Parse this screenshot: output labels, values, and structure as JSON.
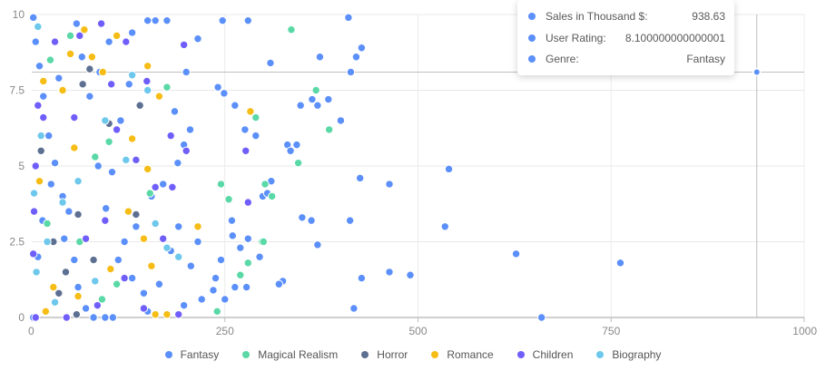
{
  "chart_data": {
    "type": "scatter",
    "title": "",
    "xlabel": "Sales in Thousand $",
    "ylabel": "User Rating",
    "xlim": [
      0,
      1000
    ],
    "ylim": [
      0,
      10
    ],
    "x_ticks": [
      "0",
      "250",
      "500",
      "750",
      "1000"
    ],
    "y_ticks": [
      "0",
      "2.5",
      "5",
      "7.5",
      "10"
    ],
    "grid": true,
    "legend_position": "bottom",
    "series": [
      {
        "name": "Fantasy",
        "color": "#5b8ff9",
        "points": [
          [
            938.63,
            8.1
          ],
          [
            660,
            0
          ],
          [
            762,
            1.8
          ],
          [
            627,
            2.1
          ],
          [
            535,
            3.0
          ],
          [
            540,
            4.9
          ],
          [
            490,
            1.4
          ],
          [
            463,
            1.5
          ],
          [
            427,
            1.3
          ],
          [
            417,
            0.3
          ],
          [
            412,
            3.2
          ],
          [
            463,
            4.4
          ],
          [
            425,
            4.6
          ],
          [
            370,
            2.4
          ],
          [
            362,
            3.2
          ],
          [
            350,
            3.3
          ],
          [
            325,
            1.2
          ],
          [
            320,
            1.1
          ],
          [
            299,
            4.0
          ],
          [
            305,
            4.1
          ],
          [
            310,
            4.5
          ],
          [
            295,
            2.0
          ],
          [
            280,
            2.6
          ],
          [
            270,
            2.3
          ],
          [
            260,
            2.7
          ],
          [
            263,
            1.0
          ],
          [
            238,
            1.3
          ],
          [
            235,
            0.9
          ],
          [
            220,
            0.6
          ],
          [
            290,
            6.0
          ],
          [
            331,
            5.7
          ],
          [
            335,
            5.5
          ],
          [
            343,
            5.7
          ],
          [
            348,
            7.0
          ],
          [
            370,
            7.0
          ],
          [
            363,
            7.2
          ],
          [
            400,
            6.5
          ],
          [
            420,
            8.6
          ],
          [
            427,
            8.9
          ],
          [
            413,
            8.1
          ],
          [
            410,
            9.9
          ],
          [
            373,
            8.6
          ],
          [
            384,
            7.2
          ],
          [
            247,
            9.8
          ],
          [
            249,
            7.4
          ],
          [
            241,
            7.6
          ],
          [
            276,
            6.2
          ],
          [
            263,
            7.0
          ],
          [
            280,
            9.8
          ],
          [
            309,
            8.4
          ],
          [
            259,
            3.2
          ],
          [
            245,
            1.9
          ],
          [
            278,
            1.0
          ],
          [
            250,
            0.6
          ],
          [
            175,
            9.8
          ],
          [
            160,
            9.8
          ],
          [
            150,
            9.8
          ],
          [
            215,
            9.2
          ],
          [
            200,
            8.1
          ],
          [
            185,
            6.8
          ],
          [
            205,
            6.2
          ],
          [
            197,
            5.7
          ],
          [
            189,
            5.1
          ],
          [
            170,
            4.4
          ],
          [
            155,
            4.0
          ],
          [
            135,
            3.0
          ],
          [
            120,
            2.5
          ],
          [
            112,
            1.9
          ],
          [
            130,
            1.3
          ],
          [
            145,
            0.8
          ],
          [
            150,
            0.2
          ],
          [
            105,
            0.0
          ],
          [
            95,
            0.0
          ],
          [
            80,
            0.0
          ],
          [
            70,
            0.3
          ],
          [
            60,
            1.0
          ],
          [
            55,
            1.9
          ],
          [
            48,
            3.5
          ],
          [
            40,
            4.0
          ],
          [
            30,
            5.1
          ],
          [
            22,
            6.0
          ],
          [
            15,
            7.3
          ],
          [
            10,
            8.3
          ],
          [
            5,
            9.1
          ],
          [
            2,
            9.9
          ],
          [
            2,
            0.0
          ],
          [
            8,
            2.0
          ],
          [
            14,
            3.2
          ],
          [
            25,
            4.4
          ],
          [
            42,
            2.6
          ],
          [
            86,
            5.0
          ],
          [
            96,
            3.6
          ],
          [
            104,
            4.8
          ],
          [
            115,
            6.5
          ],
          [
            126,
            7.7
          ],
          [
            130,
            9.4
          ],
          [
            100,
            9.1
          ],
          [
            88,
            8.1
          ],
          [
            75,
            7.3
          ],
          [
            65,
            8.6
          ],
          [
            58,
            9.7
          ],
          [
            35,
            7.9
          ],
          [
            180,
            2.2
          ],
          [
            190,
            3.0
          ],
          [
            206,
            1.7
          ],
          [
            215,
            2.5
          ],
          [
            197,
            0.4
          ],
          [
            165,
            1.1
          ]
        ]
      },
      {
        "name": "Magical Realism",
        "color": "#5ad8a6",
        "points": [
          [
            336,
            9.5
          ],
          [
            368,
            7.5
          ],
          [
            385,
            6.2
          ],
          [
            345,
            5.1
          ],
          [
            290,
            6.6
          ],
          [
            302,
            4.4
          ],
          [
            311,
            4.0
          ],
          [
            298,
            2.5
          ],
          [
            300,
            2.5
          ],
          [
            270,
            1.4
          ],
          [
            280,
            1.8
          ],
          [
            240,
            0.2
          ],
          [
            196,
            9.0
          ],
          [
            175,
            7.6
          ],
          [
            245,
            4.4
          ],
          [
            255,
            3.9
          ],
          [
            153,
            4.1
          ],
          [
            100,
            5.8
          ],
          [
            82,
            5.3
          ],
          [
            50,
            9.3
          ],
          [
            24,
            8.5
          ],
          [
            20,
            3.1
          ],
          [
            62,
            2.5
          ],
          [
            110,
            1.1
          ],
          [
            91,
            0.6
          ]
        ]
      },
      {
        "name": "Horror",
        "color": "#5d7092",
        "points": [
          [
            75,
            8.2
          ],
          [
            66,
            7.7
          ],
          [
            140,
            7.0
          ],
          [
            135,
            3.4
          ],
          [
            60,
            3.4
          ],
          [
            44,
            1.5
          ],
          [
            35,
            0.8
          ],
          [
            58,
            0.1
          ],
          [
            12,
            5.5
          ],
          [
            28,
            2.5
          ],
          [
            80,
            1.9
          ],
          [
            100,
            6.4
          ]
        ]
      },
      {
        "name": "Romance",
        "color": "#f6bd16",
        "points": [
          [
            283,
            6.8
          ],
          [
            215,
            3.0
          ],
          [
            155,
            1.7
          ],
          [
            175,
            0.1
          ],
          [
            160,
            0.1
          ],
          [
            145,
            2.6
          ],
          [
            125,
            3.5
          ],
          [
            150,
            4.9
          ],
          [
            130,
            5.9
          ],
          [
            165,
            7.3
          ],
          [
            150,
            8.3
          ],
          [
            110,
            9.3
          ],
          [
            92,
            8.1
          ],
          [
            78,
            8.6
          ],
          [
            68,
            9.5
          ],
          [
            50,
            8.7
          ],
          [
            40,
            7.5
          ],
          [
            15,
            7.8
          ],
          [
            10,
            4.5
          ],
          [
            28,
            1.0
          ],
          [
            102,
            1.6
          ],
          [
            60,
            0.7
          ],
          [
            18,
            0.2
          ],
          [
            55,
            5.6
          ]
        ]
      },
      {
        "name": "Children",
        "color": "#6f5ef9",
        "points": [
          [
            277,
            5.5
          ],
          [
            280,
            3.8
          ],
          [
            197,
            9.0
          ],
          [
            190,
            0.1
          ],
          [
            122,
            9.1
          ],
          [
            149,
            7.8
          ],
          [
            103,
            7.7
          ],
          [
            110,
            6.2
          ],
          [
            135,
            5.2
          ],
          [
            160,
            4.3
          ],
          [
            180,
            6.0
          ],
          [
            170,
            2.6
          ],
          [
            145,
            0.3
          ],
          [
            85,
            0.4
          ],
          [
            70,
            2.6
          ],
          [
            55,
            6.6
          ],
          [
            30,
            9.1
          ],
          [
            15,
            6.6
          ],
          [
            5,
            5.0
          ],
          [
            3,
            3.5
          ],
          [
            2,
            2.1
          ],
          [
            5,
            0.0
          ],
          [
            45,
            0.0
          ],
          [
            95,
            3.2
          ],
          [
            90,
            9.7
          ],
          [
            62,
            9.3
          ],
          [
            8,
            7.0
          ],
          [
            120,
            1.3
          ],
          [
            182,
            4.3
          ],
          [
            200,
            5.5
          ]
        ]
      },
      {
        "name": "Biography",
        "color": "#6dc8ec",
        "points": [
          [
            150,
            7.5
          ],
          [
            130,
            8.0
          ],
          [
            95,
            6.5
          ],
          [
            60,
            4.5
          ],
          [
            40,
            3.8
          ],
          [
            20,
            2.5
          ],
          [
            8,
            9.6
          ],
          [
            12,
            6.0
          ],
          [
            3,
            4.1
          ],
          [
            6,
            1.5
          ],
          [
            30,
            0.5
          ],
          [
            175,
            2.3
          ],
          [
            190,
            2.0
          ],
          [
            82,
            1.2
          ],
          [
            122,
            5.2
          ],
          [
            160,
            3.1
          ]
        ]
      }
    ],
    "tooltip": {
      "rows": [
        {
          "label": "Sales in Thousand $:",
          "value": "938.63"
        },
        {
          "label": "User Rating:",
          "value": "8.100000000000001"
        },
        {
          "label": "Genre:",
          "value": "Fantasy"
        }
      ],
      "marker_color": "#5b8ff9",
      "crosshair": {
        "x": 938.63,
        "y": 8.1
      }
    }
  },
  "legend": [
    {
      "label": "Fantasy",
      "color": "#5b8ff9"
    },
    {
      "label": "Magical Realism",
      "color": "#5ad8a6"
    },
    {
      "label": "Horror",
      "color": "#5d7092"
    },
    {
      "label": "Romance",
      "color": "#f6bd16"
    },
    {
      "label": "Children",
      "color": "#6f5ef9"
    },
    {
      "label": "Biography",
      "color": "#6dc8ec"
    }
  ]
}
